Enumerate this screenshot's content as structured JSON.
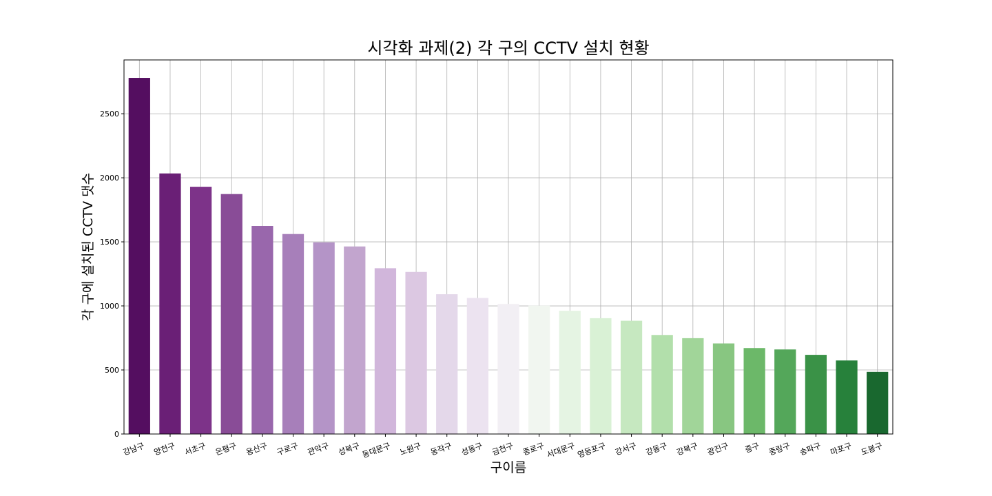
{
  "chart_data": {
    "type": "bar",
    "title": "시각화 과제(2) 각 구의 CCTV 설치 현황",
    "xlabel": "구이름",
    "ylabel": "각 구에 설치된 CCTV 댓수",
    "categories": [
      "강남구",
      "양천구",
      "서초구",
      "은평구",
      "용산구",
      "구로구",
      "관악구",
      "성북구",
      "동대문구",
      "노원구",
      "동작구",
      "성동구",
      "금천구",
      "종로구",
      "서대문구",
      "영등포구",
      "강서구",
      "강동구",
      "강북구",
      "광진구",
      "중구",
      "중랑구",
      "송파구",
      "마포구",
      "도봉구"
    ],
    "values": [
      2780,
      2034,
      1930,
      1873,
      1624,
      1561,
      1496,
      1464,
      1294,
      1265,
      1091,
      1062,
      1015,
      1002,
      962,
      904,
      884,
      773,
      748,
      707,
      671,
      660,
      618,
      574,
      485
    ],
    "colors": [
      "#540e60",
      "#6a1f76",
      "#7d3389",
      "#894c97",
      "#9967ac",
      "#a77fba",
      "#b494c7",
      "#c2a5ce",
      "#d1b6db",
      "#dcc8e2",
      "#e4d8ea",
      "#ece3f0",
      "#f2eff4",
      "#f1f6f0",
      "#e5f4e3",
      "#d9f1d5",
      "#c6e8c0",
      "#b2dfab",
      "#a1d599",
      "#88c681",
      "#6cb869",
      "#54a75a",
      "#3a9247",
      "#27813b",
      "#19682f"
    ],
    "yticks": [
      0,
      500,
      1000,
      1500,
      2000,
      2500
    ],
    "ylim": [
      0,
      2920
    ],
    "grid": true,
    "legend": "none"
  }
}
